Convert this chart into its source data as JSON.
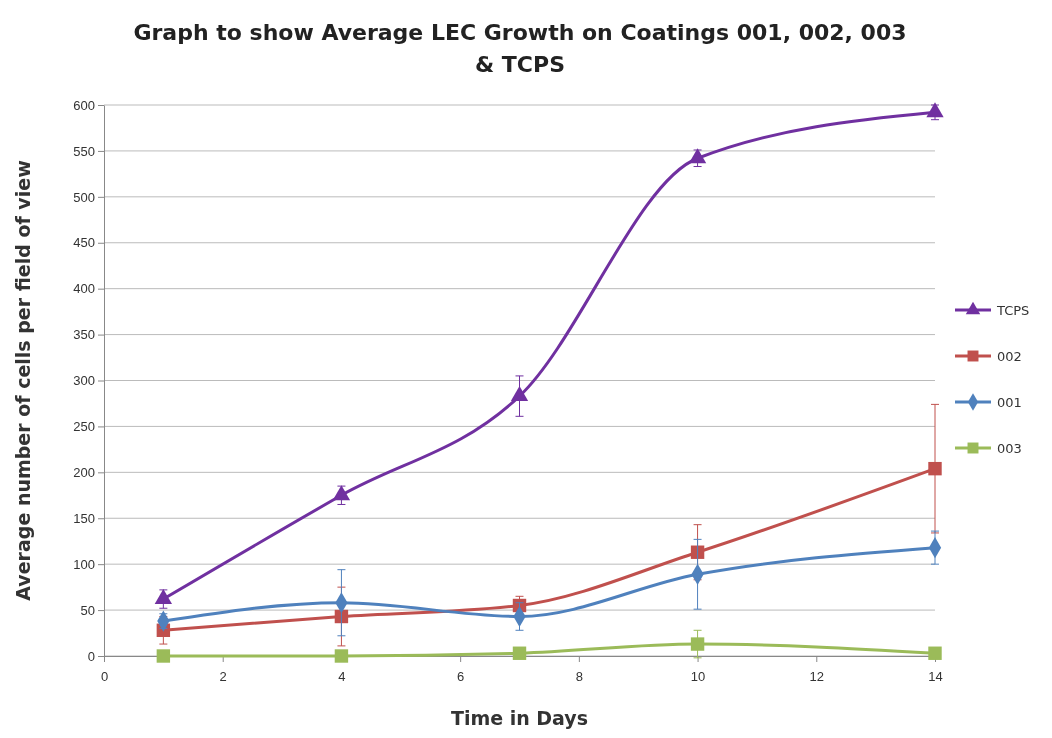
{
  "chart_data": {
    "type": "line",
    "title": "Graph to show Average LEC Growth on Coatings 001, 002, 003 & TCPS",
    "xlabel": "Time in Days",
    "ylabel": "Average number of cells per field of view",
    "x": [
      1,
      4,
      7,
      10,
      14
    ],
    "series": [
      {
        "name": "TCPS",
        "color": "#7030a0",
        "marker": "triangle",
        "values": [
          62,
          175,
          283,
          542,
          592
        ],
        "errors": [
          10,
          10,
          22,
          9,
          8
        ]
      },
      {
        "name": "002",
        "color": "#c0504d",
        "marker": "square",
        "values": [
          28,
          43,
          55,
          113,
          204
        ],
        "errors": [
          15,
          32,
          10,
          30,
          70
        ]
      },
      {
        "name": "001",
        "color": "#4f81bd",
        "marker": "diamond",
        "values": [
          38,
          58,
          43,
          89,
          118
        ],
        "errors": [
          8,
          36,
          15,
          38,
          18
        ]
      },
      {
        "name": "003",
        "color": "#9bbb59",
        "marker": "square",
        "values": [
          0,
          0,
          3,
          13,
          3
        ],
        "errors": [
          null,
          null,
          null,
          15,
          null
        ]
      }
    ],
    "xlim": [
      0,
      14
    ],
    "xticks": [
      0,
      2,
      4,
      6,
      8,
      10,
      12,
      14
    ],
    "ylim": [
      0,
      600
    ],
    "yticks": [
      0,
      50,
      100,
      150,
      200,
      250,
      300,
      350,
      400,
      450,
      500,
      550,
      600
    ],
    "grid": "y",
    "legend": "right",
    "line_style": "solid"
  }
}
